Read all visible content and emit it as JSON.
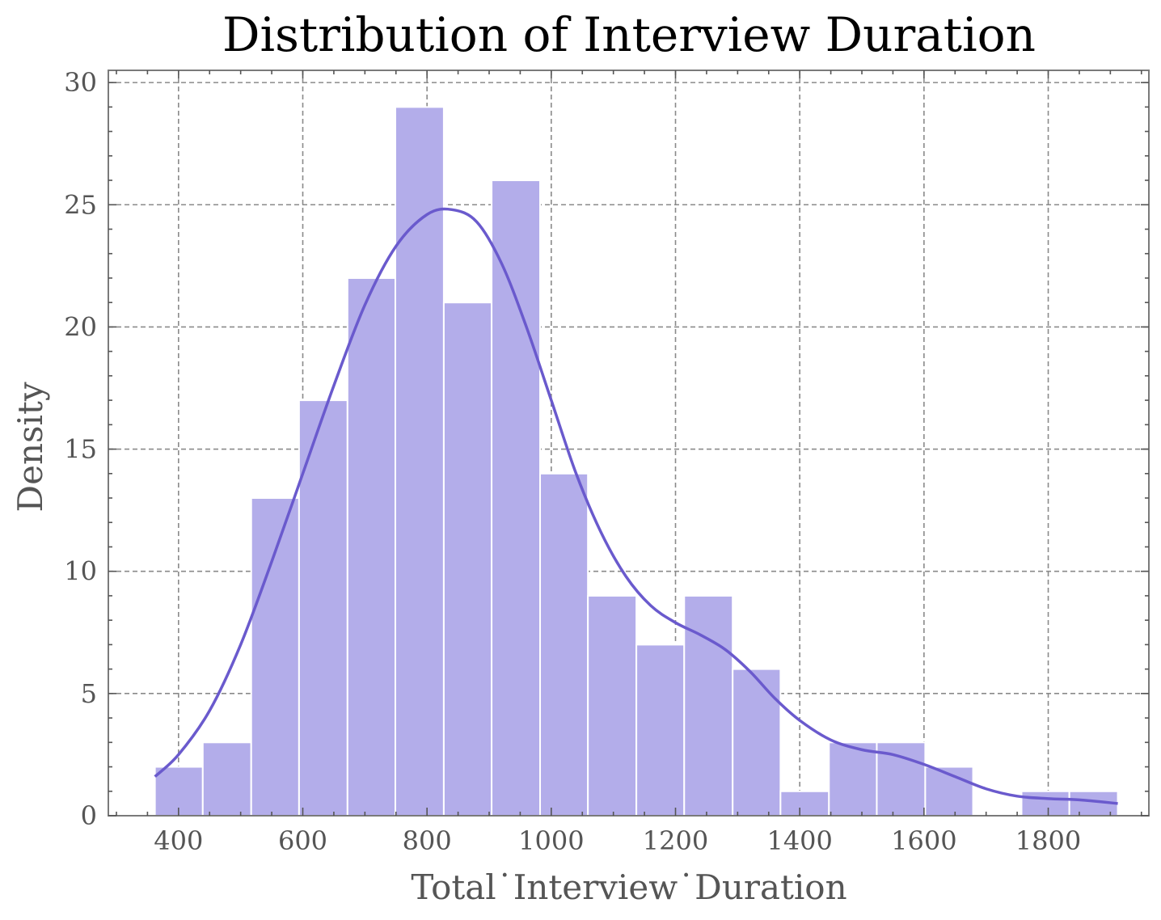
{
  "chart_data": {
    "type": "bar",
    "title": "Distribution of Interview Duration",
    "xlabel": "Total˙Interview˙Duration",
    "ylabel": "Density",
    "xlim": [
      287,
      1962
    ],
    "ylim": [
      0,
      30.5
    ],
    "xticks": [
      400,
      600,
      800,
      1000,
      1200,
      1400,
      1600,
      1800
    ],
    "yticks": [
      0,
      5,
      10,
      15,
      20,
      25,
      30
    ],
    "grid": true,
    "bins": [
      {
        "x0": 362,
        "x1": 439,
        "value": 2
      },
      {
        "x0": 439,
        "x1": 517,
        "value": 3
      },
      {
        "x0": 517,
        "x1": 594,
        "value": 13
      },
      {
        "x0": 594,
        "x1": 672,
        "value": 17
      },
      {
        "x0": 672,
        "x1": 749,
        "value": 22
      },
      {
        "x0": 749,
        "x1": 827,
        "value": 29
      },
      {
        "x0": 827,
        "x1": 904,
        "value": 21
      },
      {
        "x0": 904,
        "x1": 982,
        "value": 26
      },
      {
        "x0": 982,
        "x1": 1059,
        "value": 14
      },
      {
        "x0": 1059,
        "x1": 1137,
        "value": 9
      },
      {
        "x0": 1137,
        "x1": 1214,
        "value": 7
      },
      {
        "x0": 1214,
        "x1": 1292,
        "value": 9
      },
      {
        "x0": 1292,
        "x1": 1369,
        "value": 6
      },
      {
        "x0": 1369,
        "x1": 1447,
        "value": 1
      },
      {
        "x0": 1447,
        "x1": 1524,
        "value": 3
      },
      {
        "x0": 1524,
        "x1": 1602,
        "value": 3
      },
      {
        "x0": 1602,
        "x1": 1679,
        "value": 2
      },
      {
        "x0": 1679,
        "x1": 1757,
        "value": 0
      },
      {
        "x0": 1757,
        "x1": 1834,
        "value": 1
      },
      {
        "x0": 1834,
        "x1": 1912,
        "value": 1
      }
    ],
    "kde": {
      "x": [
        362,
        400,
        450,
        500,
        550,
        600,
        650,
        700,
        750,
        800,
        840,
        880,
        920,
        960,
        1000,
        1040,
        1080,
        1120,
        1160,
        1200,
        1240,
        1280,
        1320,
        1360,
        1400,
        1450,
        1500,
        1550,
        1600,
        1650,
        1700,
        1750,
        1800,
        1850,
        1912
      ],
      "y": [
        1.6,
        2.5,
        4.3,
        7.0,
        10.4,
        14.0,
        17.6,
        20.9,
        23.3,
        24.6,
        24.8,
        24.3,
        22.6,
        20.0,
        17.0,
        14.0,
        11.6,
        9.8,
        8.6,
        7.9,
        7.4,
        6.8,
        5.9,
        4.8,
        3.9,
        3.1,
        2.7,
        2.5,
        2.1,
        1.6,
        1.1,
        0.8,
        0.7,
        0.65,
        0.5
      ]
    },
    "colors": {
      "bar": "#b3adea",
      "line": "#6a5acd"
    }
  }
}
